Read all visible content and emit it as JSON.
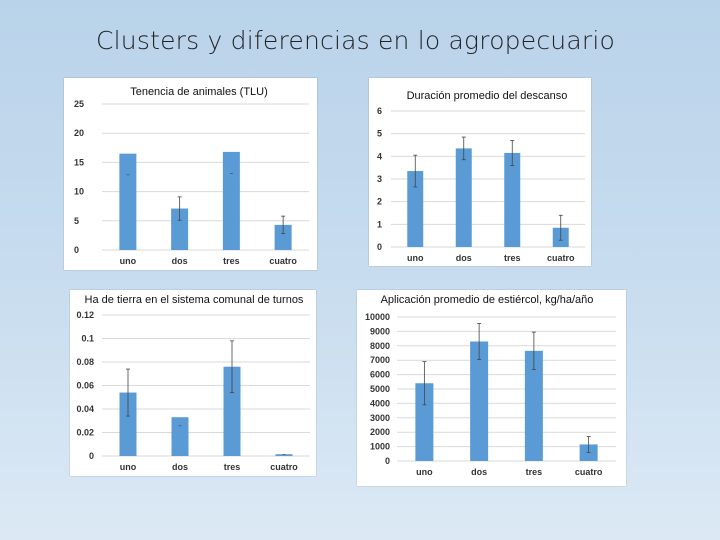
{
  "slide": {
    "title": "Clusters y diferencias en lo agropecuario"
  },
  "chart_data": [
    {
      "type": "bar",
      "title": "Tenencia de animales (TLU)",
      "categories": [
        "uno",
        "dos",
        "tres",
        "cuatro"
      ],
      "values": [
        16.5,
        7.1,
        16.8,
        4.3
      ],
      "error": [
        0,
        2.0,
        0,
        1.5
      ],
      "yticks": [
        "0",
        "5",
        "10",
        "15",
        "20",
        "25"
      ],
      "ylim": [
        0,
        25
      ],
      "color": "#5b9bd5"
    },
    {
      "type": "bar",
      "title": "Duración promedio del descanso",
      "categories": [
        "uno",
        "dos",
        "tres",
        "cuatro"
      ],
      "values": [
        3.35,
        4.35,
        4.15,
        0.85
      ],
      "error": [
        0.7,
        0.5,
        0.55,
        0.55
      ],
      "yticks": [
        "0",
        "1",
        "2",
        "3",
        "4",
        "5",
        "6"
      ],
      "ylim": [
        0,
        6
      ],
      "color": "#5b9bd5"
    },
    {
      "type": "bar",
      "title": "Ha de tierra en el sistema comunal de turnos",
      "categories": [
        "uno",
        "dos",
        "tres",
        "cuatro"
      ],
      "values": [
        0.054,
        0.033,
        0.076,
        0.0015
      ],
      "error": [
        0.02,
        0.0,
        0.022,
        0.0
      ],
      "yticks": [
        "0",
        "0.02",
        "0.04",
        "0.06",
        "0.08",
        "0.1",
        "0.12"
      ],
      "ylim": [
        0,
        0.12
      ],
      "color": "#5b9bd5"
    },
    {
      "type": "bar",
      "title": "Aplicación promedio de estiércol, kg/ha/año",
      "categories": [
        "uno",
        "dos",
        "tres",
        "cuatro"
      ],
      "values": [
        5400,
        8300,
        7650,
        1150
      ],
      "error": [
        1500,
        1250,
        1300,
        550
      ],
      "yticks": [
        "0",
        "1000",
        "2000",
        "3000",
        "4000",
        "5000",
        "6000",
        "7000",
        "8000",
        "9000",
        "10000"
      ],
      "ylim": [
        0,
        10000
      ],
      "color": "#5b9bd5"
    }
  ]
}
